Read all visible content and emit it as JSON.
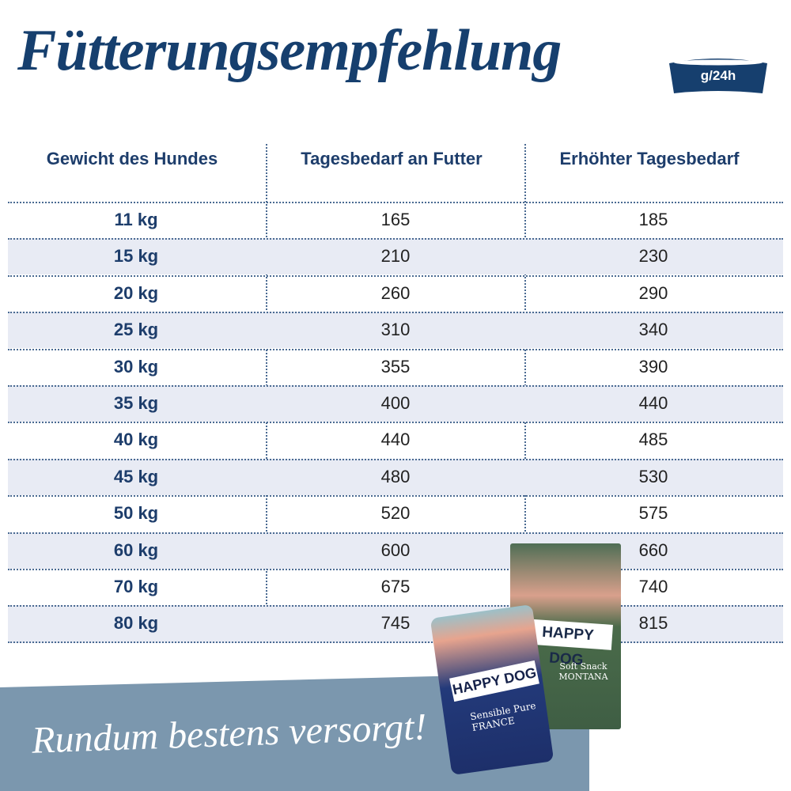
{
  "title": "Fütterungsempfehlung",
  "unit_badge": {
    "label": "g/24h",
    "icon": "bowl-icon",
    "color": "#163f6e"
  },
  "headers": {
    "weight": "Gewicht des Hundes",
    "daily": "Tagesbedarf an Futter",
    "increased": "Erhöhter Tagesbedarf"
  },
  "rows": [
    {
      "weight": "11 kg",
      "daily": "165",
      "increased": "185"
    },
    {
      "weight": "15 kg",
      "daily": "210",
      "increased": "230"
    },
    {
      "weight": "20 kg",
      "daily": "260",
      "increased": "290"
    },
    {
      "weight": "25 kg",
      "daily": "310",
      "increased": "340"
    },
    {
      "weight": "30 kg",
      "daily": "355",
      "increased": "390"
    },
    {
      "weight": "35 kg",
      "daily": "400",
      "increased": "440"
    },
    {
      "weight": "40 kg",
      "daily": "440",
      "increased": "485"
    },
    {
      "weight": "45 kg",
      "daily": "480",
      "increased": "530"
    },
    {
      "weight": "50 kg",
      "daily": "520",
      "increased": "575"
    },
    {
      "weight": "60 kg",
      "daily": "600",
      "increased": "660"
    },
    {
      "weight": "70 kg",
      "daily": "675",
      "increased": "740"
    },
    {
      "weight": "80 kg",
      "daily": "745",
      "increased": "815"
    }
  ],
  "slogan": "Rundum bestens versorgt!",
  "products": {
    "bag": {
      "brand": "HAPPY DOG",
      "line": "Soft Snack",
      "variety": "MONTANA"
    },
    "can": {
      "brand": "HAPPY DOG",
      "line": "Sensible Pure",
      "variety": "FRANCE"
    }
  },
  "colors": {
    "navy": "#163f6e",
    "row_shade": "#e8ebf4",
    "banner": "#7b97ae"
  }
}
